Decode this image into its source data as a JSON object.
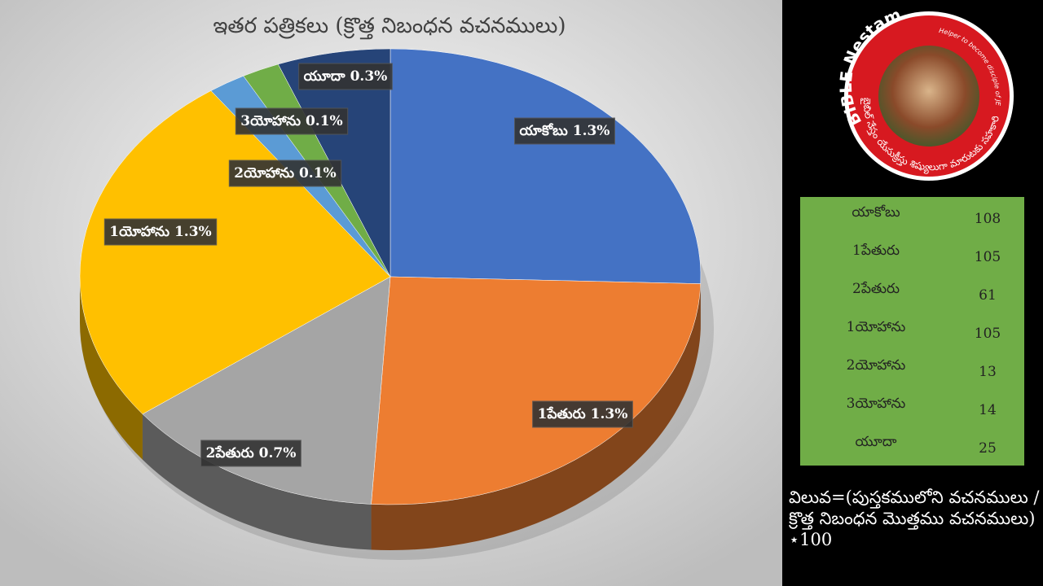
{
  "chart_data": {
    "type": "pie",
    "title": "ఇతర పత్రికలు (క్రొత్త నిబంధన వచనములు)",
    "categories": [
      "యాకోబు",
      "1పేతురు",
      "2పేతురు",
      "1యోహాను",
      "2యోహాను",
      "3యోహాను",
      "యూదా"
    ],
    "values": [
      1.3,
      1.3,
      0.7,
      1.3,
      0.1,
      0.1,
      0.3
    ],
    "value_labels": [
      "1.3%",
      "1.3%",
      "0.7%",
      "1.3%",
      "0.1%",
      "0.1%",
      "0.3%"
    ],
    "colors": [
      "#4472c4",
      "#ed7d31",
      "#a5a5a5",
      "#ffc000",
      "#5b9bd5",
      "#70ad47",
      "#264478"
    ]
  },
  "table": {
    "rows": [
      [
        "యాకోబు",
        108
      ],
      [
        "1పేతురు",
        105
      ],
      [
        "2పేతురు",
        61
      ],
      [
        "1యోహాను",
        105
      ],
      [
        "2యోహాను",
        13
      ],
      [
        "3యోహాను",
        14
      ],
      [
        "యూదా",
        25
      ]
    ]
  },
  "formula": "విలువ=(పుస్తకములోని వచనములు / క్రొత్త నిబంధన మొత్తము వచనములు) ⋆100",
  "logo": {
    "name": "BIBLE Nestam",
    "tagline": "Helper to become disciple of JESUS CHRIST",
    "telugu": "బైబిల్ నేస్తం యేసుక్రీస్తు శిష్యులుగా మారుటకు సహకారి"
  }
}
